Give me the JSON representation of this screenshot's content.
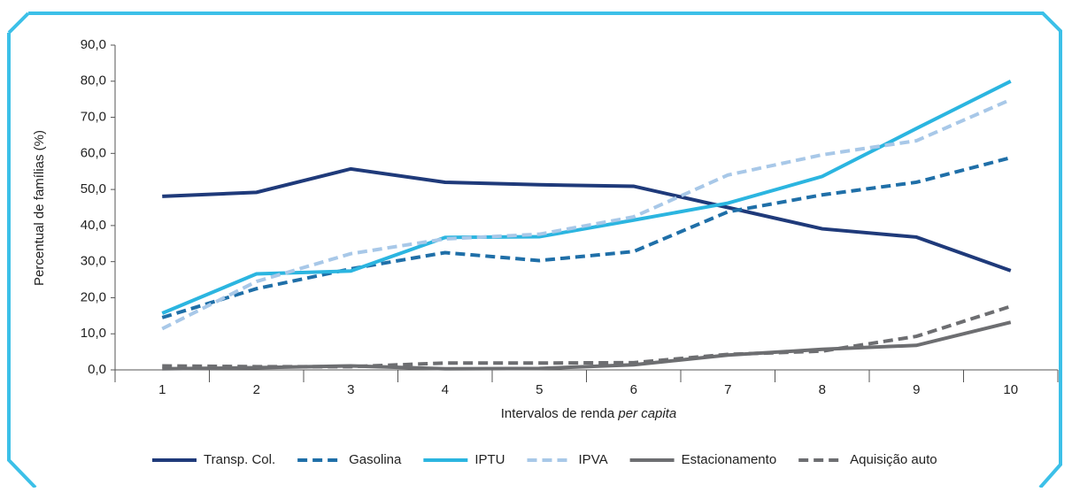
{
  "chart_data": {
    "type": "line",
    "ylabel": "Percentual de famílias (%)",
    "xlabel": [
      "Intervalos de renda",
      "per capita"
    ],
    "categories": [
      "1",
      "2",
      "3",
      "4",
      "5",
      "6",
      "7",
      "8",
      "9",
      "10"
    ],
    "ylim": [
      0,
      90
    ],
    "yticks": [
      {
        "value": 0,
        "label": "0,0"
      },
      {
        "value": 10,
        "label": "10,0"
      },
      {
        "value": 20,
        "label": "20,0"
      },
      {
        "value": 30,
        "label": "30,0"
      },
      {
        "value": 40,
        "label": "40,0"
      },
      {
        "value": 50,
        "label": "50,0"
      },
      {
        "value": 60,
        "label": "60,0"
      },
      {
        "value": 70,
        "label": "70,0"
      },
      {
        "value": 80,
        "label": "80,0"
      },
      {
        "value": 90,
        "label": "90,0"
      }
    ],
    "grid": false,
    "legend": "bottom",
    "series": [
      {
        "name": "Transp. Col.",
        "color": "#1f3a7a",
        "dashed": false,
        "values": [
          48.1,
          49.2,
          55.7,
          52.0,
          51.3,
          50.9,
          45.0,
          39.1,
          36.8,
          27.5
        ]
      },
      {
        "name": "Gasolina",
        "color": "#1f6fa8",
        "dashed": true,
        "values": [
          14.5,
          22.5,
          28.0,
          32.5,
          30.3,
          32.8,
          43.8,
          48.5,
          52.0,
          58.8
        ]
      },
      {
        "name": "IPTU",
        "color": "#2bb5e0",
        "dashed": false,
        "values": [
          15.7,
          26.6,
          27.4,
          36.7,
          36.9,
          41.5,
          46.2,
          53.6,
          66.9,
          80.0
        ]
      },
      {
        "name": "IPVA",
        "color": "#a8c8e8",
        "dashed": true,
        "values": [
          11.4,
          24.5,
          32.2,
          36.3,
          37.6,
          42.4,
          54.0,
          59.6,
          63.5,
          74.9
        ]
      },
      {
        "name": "Estacionamento",
        "color": "#6d6e71",
        "dashed": false,
        "values": [
          0.3,
          0.6,
          1.1,
          0.3,
          0.4,
          1.4,
          4.1,
          5.7,
          6.8,
          13.2
        ]
      },
      {
        "name": "Aquisição auto",
        "color": "#6d6e71",
        "dashed": true,
        "values": [
          1.1,
          0.9,
          0.9,
          1.9,
          1.9,
          2.0,
          4.3,
          5.2,
          9.3,
          17.6
        ]
      }
    ]
  }
}
